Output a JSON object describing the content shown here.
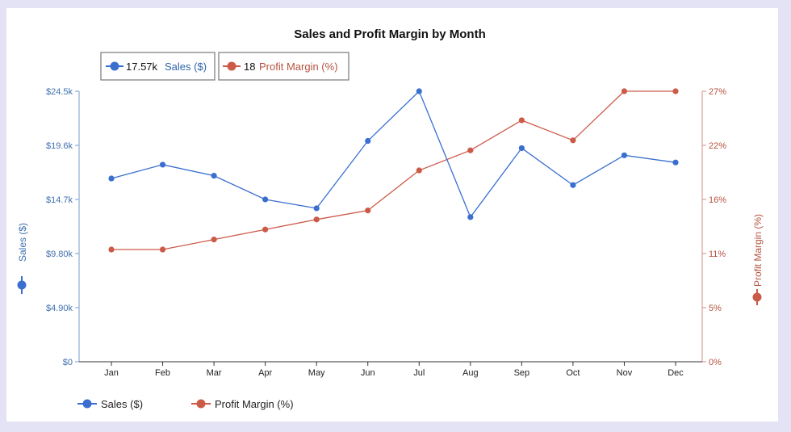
{
  "colors": {
    "sales": "#3a6fd0",
    "profit": "#cc5a48",
    "sales_axis": "#3f6fae",
    "profit_axis": "#b5523f"
  },
  "chart_data": {
    "type": "line",
    "title": "Sales and Profit Margin by Month",
    "categories": [
      "Jan",
      "Feb",
      "Mar",
      "Apr",
      "May",
      "Jun",
      "Jul",
      "Aug",
      "Sep",
      "Oct",
      "Nov",
      "Dec"
    ],
    "series": [
      {
        "name": "Sales ($)",
        "axis": "left",
        "values": [
          16600,
          17850,
          16850,
          14700,
          13900,
          20000,
          24500,
          13100,
          19350,
          16000,
          18700,
          18050
        ]
      },
      {
        "name": "Profit Margin (%)",
        "axis": "right",
        "values": [
          11.2,
          11.2,
          12.2,
          13.2,
          14.2,
          15.1,
          19.1,
          21.1,
          24.1,
          22.1,
          27.0,
          27.0
        ]
      }
    ],
    "y_left": {
      "label": "Sales ($)",
      "range": [
        0,
        24500
      ],
      "ticks": [
        0,
        4900,
        9800,
        14700,
        19600,
        24500
      ],
      "tick_labels": [
        "$0",
        "$4.90k",
        "$9.80k",
        "$14.7k",
        "$19.6k",
        "$24.5k"
      ]
    },
    "y_right": {
      "label": "Profit Margin (%)",
      "range": [
        0,
        27
      ],
      "ticks": [
        0,
        5.4,
        10.8,
        16.2,
        21.6,
        27
      ],
      "tick_labels": [
        "0%",
        "5%",
        "11%",
        "16%",
        "22%",
        "27%"
      ]
    },
    "tooltip": {
      "sales_value": "17.57k",
      "sales_label": "Sales ($)",
      "profit_value": "18",
      "profit_label": "Profit Margin (%)"
    },
    "legend": [
      "Sales ($)",
      "Profit Margin (%)"
    ],
    "legend_position": "bottom-left",
    "grid": false
  }
}
